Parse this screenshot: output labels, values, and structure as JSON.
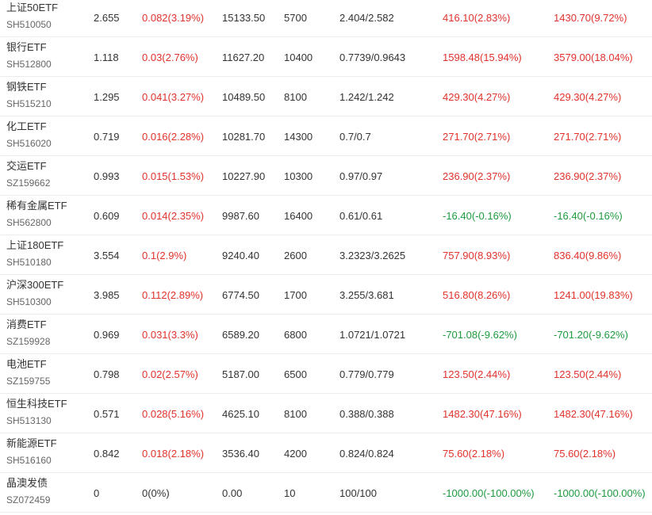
{
  "colors": {
    "up": "#e1322b",
    "down": "#1f9b3f",
    "text": "#333333",
    "subtext": "#666666",
    "divider": "#ececec"
  },
  "rows": [
    {
      "name": "上证50ETF",
      "code": "SH510050",
      "price": "2.655",
      "change": "0.082(3.19%)",
      "change_dir": "up",
      "amount": "15133.50",
      "volume": "5700",
      "range": "2.404/2.582",
      "pl": "416.10(2.83%)",
      "pl_dir": "up",
      "total": "1430.70(9.72%)",
      "total_dir": "up"
    },
    {
      "name": "银行ETF",
      "code": "SH512800",
      "price": "1.118",
      "change": "0.03(2.76%)",
      "change_dir": "up",
      "amount": "11627.20",
      "volume": "10400",
      "range": "0.7739/0.9643",
      "pl": "1598.48(15.94%)",
      "pl_dir": "up",
      "total": "3579.00(18.04%)",
      "total_dir": "up"
    },
    {
      "name": "钢铁ETF",
      "code": "SH515210",
      "price": "1.295",
      "change": "0.041(3.27%)",
      "change_dir": "up",
      "amount": "10489.50",
      "volume": "8100",
      "range": "1.242/1.242",
      "pl": "429.30(4.27%)",
      "pl_dir": "up",
      "total": "429.30(4.27%)",
      "total_dir": "up"
    },
    {
      "name": "化工ETF",
      "code": "SH516020",
      "price": "0.719",
      "change": "0.016(2.28%)",
      "change_dir": "up",
      "amount": "10281.70",
      "volume": "14300",
      "range": "0.7/0.7",
      "pl": "271.70(2.71%)",
      "pl_dir": "up",
      "total": "271.70(2.71%)",
      "total_dir": "up"
    },
    {
      "name": "交运ETF",
      "code": "SZ159662",
      "price": "0.993",
      "change": "0.015(1.53%)",
      "change_dir": "up",
      "amount": "10227.90",
      "volume": "10300",
      "range": "0.97/0.97",
      "pl": "236.90(2.37%)",
      "pl_dir": "up",
      "total": "236.90(2.37%)",
      "total_dir": "up"
    },
    {
      "name": "稀有金属ETF",
      "code": "SH562800",
      "price": "0.609",
      "change": "0.014(2.35%)",
      "change_dir": "up",
      "amount": "9987.60",
      "volume": "16400",
      "range": "0.61/0.61",
      "pl": "-16.40(-0.16%)",
      "pl_dir": "down",
      "total": "-16.40(-0.16%)",
      "total_dir": "down"
    },
    {
      "name": "上证180ETF",
      "code": "SH510180",
      "price": "3.554",
      "change": "0.1(2.9%)",
      "change_dir": "up",
      "amount": "9240.40",
      "volume": "2600",
      "range": "3.2323/3.2625",
      "pl": "757.90(8.93%)",
      "pl_dir": "up",
      "total": "836.40(9.86%)",
      "total_dir": "up"
    },
    {
      "name": "沪深300ETF",
      "code": "SH510300",
      "price": "3.985",
      "change": "0.112(2.89%)",
      "change_dir": "up",
      "amount": "6774.50",
      "volume": "1700",
      "range": "3.255/3.681",
      "pl": "516.80(8.26%)",
      "pl_dir": "up",
      "total": "1241.00(19.83%)",
      "total_dir": "up"
    },
    {
      "name": "消费ETF",
      "code": "SZ159928",
      "price": "0.969",
      "change": "0.031(3.3%)",
      "change_dir": "up",
      "amount": "6589.20",
      "volume": "6800",
      "range": "1.0721/1.0721",
      "pl": "-701.08(-9.62%)",
      "pl_dir": "down",
      "total": "-701.20(-9.62%)",
      "total_dir": "down"
    },
    {
      "name": "电池ETF",
      "code": "SZ159755",
      "price": "0.798",
      "change": "0.02(2.57%)",
      "change_dir": "up",
      "amount": "5187.00",
      "volume": "6500",
      "range": "0.779/0.779",
      "pl": "123.50(2.44%)",
      "pl_dir": "up",
      "total": "123.50(2.44%)",
      "total_dir": "up"
    },
    {
      "name": "恒生科技ETF",
      "code": "SH513130",
      "price": "0.571",
      "change": "0.028(5.16%)",
      "change_dir": "up",
      "amount": "4625.10",
      "volume": "8100",
      "range": "0.388/0.388",
      "pl": "1482.30(47.16%)",
      "pl_dir": "up",
      "total": "1482.30(47.16%)",
      "total_dir": "up"
    },
    {
      "name": "新能源ETF",
      "code": "SH516160",
      "price": "0.842",
      "change": "0.018(2.18%)",
      "change_dir": "up",
      "amount": "3536.40",
      "volume": "4200",
      "range": "0.824/0.824",
      "pl": "75.60(2.18%)",
      "pl_dir": "up",
      "total": "75.60(2.18%)",
      "total_dir": "up"
    },
    {
      "name": "晶澳发债",
      "code": "SZ072459",
      "price": "0",
      "change": "0(0%)",
      "change_dir": "neutral",
      "amount": "0.00",
      "volume": "10",
      "range": "100/100",
      "pl": "-1000.00(-100.00%)",
      "pl_dir": "down",
      "total": "-1000.00(-100.00%)",
      "total_dir": "down"
    }
  ]
}
